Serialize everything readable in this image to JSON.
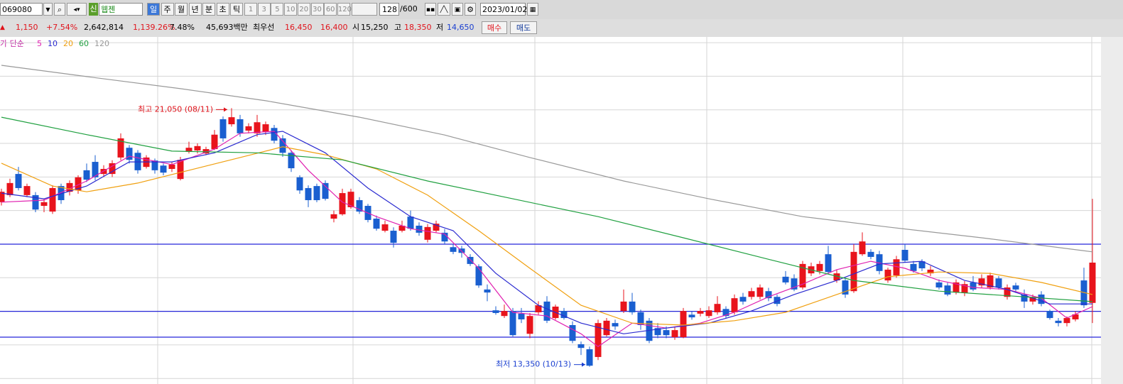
{
  "toolbar": {
    "code": "069080",
    "badge": "신",
    "name": "웹젠",
    "periods": [
      "일",
      "주",
      "월",
      "년",
      "분",
      "초",
      "틱"
    ],
    "intervals": [
      "1",
      "3",
      "5",
      "10",
      "20",
      "30",
      "60",
      "120"
    ],
    "count": "128",
    "total": "/600",
    "date": "2023/01/02"
  },
  "quote": {
    "arrow": "▲",
    "change": "1,150",
    "change_pct": "+7.54%",
    "volume": "2,642,814",
    "volume_ratio": "1,139.26%",
    "turnover": "7.48%",
    "amount": "45,693백만",
    "best_label": "최우선",
    "ask": "16,450",
    "bid": "16,400",
    "open_label": "시",
    "open": "15,250",
    "high_label": "고",
    "high": "18,350",
    "low_label": "저",
    "low": "14,650",
    "buy": "매수",
    "sell": "매도"
  },
  "chart_data": {
    "type": "candlestick",
    "legend_prefix": "가 단순",
    "ylim": [
      12920,
      23150
    ],
    "gridlines": [
      13000,
      14000,
      15000,
      16000,
      17000,
      18000,
      19000,
      20000,
      21000,
      22000,
      23000
    ],
    "hlines": [
      17000,
      15000,
      14230
    ],
    "hline_color": "#2626d9",
    "up_color": "#e8141c",
    "down_color": "#1a5fd0",
    "candles": [
      [
        18250,
        18650,
        18150,
        18560
      ],
      [
        18460,
        18950,
        18400,
        18820
      ],
      [
        19090,
        19300,
        18600,
        18670
      ],
      [
        18460,
        18800,
        18400,
        18730
      ],
      [
        18460,
        18550,
        17950,
        18030
      ],
      [
        18140,
        18350,
        17950,
        18250
      ],
      [
        17970,
        18750,
        17900,
        18670
      ],
      [
        18730,
        18800,
        18200,
        18310
      ],
      [
        18560,
        18900,
        18450,
        18820
      ],
      [
        18600,
        19050,
        18500,
        18990
      ],
      [
        19200,
        19400,
        18850,
        18920
      ],
      [
        19450,
        19650,
        18900,
        18990
      ],
      [
        19090,
        19350,
        19000,
        19240
      ],
      [
        19090,
        19500,
        19000,
        19410
      ],
      [
        19580,
        20300,
        19500,
        20150
      ],
      [
        19870,
        19950,
        19400,
        19510
      ],
      [
        19720,
        19800,
        19100,
        19200
      ],
      [
        19300,
        19650,
        19250,
        19580
      ],
      [
        19490,
        19550,
        19100,
        19200
      ],
      [
        19340,
        19400,
        19050,
        19130
      ],
      [
        19240,
        19450,
        19150,
        19370
      ],
      [
        18940,
        19600,
        18900,
        19510
      ],
      [
        19750,
        20050,
        19700,
        19870
      ],
      [
        19790,
        20000,
        19700,
        19920
      ],
      [
        19700,
        19900,
        19650,
        19830
      ],
      [
        19830,
        20400,
        19800,
        20260
      ],
      [
        20720,
        20800,
        20050,
        20150
      ],
      [
        20570,
        21050,
        20500,
        20780
      ],
      [
        20720,
        20850,
        20200,
        20300
      ],
      [
        20380,
        20600,
        20300,
        20510
      ],
      [
        20300,
        20850,
        20200,
        20630
      ],
      [
        20340,
        20650,
        20250,
        20570
      ],
      [
        20460,
        20550,
        20000,
        20080
      ],
      [
        20150,
        20250,
        19600,
        19720
      ],
      [
        19720,
        19800,
        19150,
        19260
      ],
      [
        18990,
        19050,
        18500,
        18600
      ],
      [
        18670,
        18750,
        18100,
        18310
      ],
      [
        18730,
        18800,
        18250,
        18310
      ],
      [
        18820,
        18900,
        18300,
        18350
      ],
      [
        17760,
        18000,
        17650,
        17890
      ],
      [
        17890,
        18650,
        17850,
        18520
      ],
      [
        18100,
        18650,
        18050,
        18560
      ],
      [
        18310,
        18400,
        17900,
        17970
      ],
      [
        18140,
        18200,
        17650,
        17720
      ],
      [
        17760,
        17850,
        17400,
        17460
      ],
      [
        17400,
        17700,
        17350,
        17590
      ],
      [
        17400,
        17500,
        16900,
        17040
      ],
      [
        17400,
        17700,
        17350,
        17550
      ],
      [
        17820,
        18000,
        17400,
        17460
      ],
      [
        17550,
        17650,
        17250,
        17340
      ],
      [
        17130,
        17600,
        17050,
        17510
      ],
      [
        17400,
        17700,
        17350,
        17610
      ],
      [
        17340,
        17450,
        17000,
        17080
      ],
      [
        16910,
        17000,
        16700,
        16770
      ],
      [
        16870,
        16950,
        16600,
        16740
      ],
      [
        16620,
        16700,
        16350,
        16410
      ],
      [
        16340,
        16400,
        15700,
        15770
      ],
      [
        15650,
        15800,
        15300,
        15560
      ],
      [
        15030,
        15150,
        14900,
        14950
      ],
      [
        14860,
        15200,
        14800,
        15010
      ],
      [
        15010,
        15100,
        14250,
        14290
      ],
      [
        14930,
        15100,
        14650,
        14760
      ],
      [
        14330,
        14950,
        14200,
        14860
      ],
      [
        14970,
        15300,
        14900,
        15180
      ],
      [
        15290,
        15450,
        14650,
        14720
      ],
      [
        14800,
        15200,
        14750,
        15140
      ],
      [
        15010,
        15100,
        14750,
        14800
      ],
      [
        14590,
        14700,
        14050,
        14120
      ],
      [
        14020,
        14100,
        13700,
        13910
      ],
      [
        13870,
        13950,
        13350,
        13380
      ],
      [
        13640,
        14750,
        13550,
        14650
      ],
      [
        14290,
        14800,
        14250,
        14720
      ],
      [
        14650,
        14750,
        14450,
        14550
      ],
      [
        15010,
        15650,
        14950,
        15290
      ],
      [
        15290,
        15550,
        14900,
        14970
      ],
      [
        14970,
        15050,
        14450,
        14590
      ],
      [
        14720,
        14800,
        14050,
        14120
      ],
      [
        14500,
        14650,
        14200,
        14290
      ],
      [
        14440,
        14550,
        14200,
        14290
      ],
      [
        14230,
        14550,
        14150,
        14440
      ],
      [
        14230,
        15100,
        14200,
        15010
      ],
      [
        14900,
        15000,
        14750,
        14820
      ],
      [
        14930,
        15100,
        14850,
        15010
      ],
      [
        14860,
        15150,
        14800,
        15030
      ],
      [
        14970,
        15450,
        14900,
        15220
      ],
      [
        15070,
        15150,
        14800,
        14860
      ],
      [
        14970,
        15500,
        14900,
        15390
      ],
      [
        15430,
        15550,
        15200,
        15290
      ],
      [
        15430,
        15700,
        15350,
        15600
      ],
      [
        15430,
        15800,
        15350,
        15710
      ],
      [
        15600,
        15700,
        15300,
        15390
      ],
      [
        15430,
        15500,
        15150,
        15220
      ],
      [
        16030,
        16200,
        15800,
        15860
      ],
      [
        15980,
        16100,
        15600,
        15650
      ],
      [
        15710,
        16500,
        15650,
        16410
      ],
      [
        16130,
        16450,
        16050,
        16340
      ],
      [
        16200,
        16500,
        16100,
        16410
      ],
      [
        16700,
        16950,
        16100,
        16170
      ],
      [
        15920,
        16250,
        15850,
        16130
      ],
      [
        15920,
        16000,
        15400,
        15500
      ],
      [
        15600,
        17000,
        15550,
        16770
      ],
      [
        16700,
        17350,
        16650,
        17080
      ],
      [
        16770,
        16850,
        16550,
        16620
      ],
      [
        16700,
        16800,
        16100,
        16200
      ],
      [
        15920,
        16300,
        15850,
        16240
      ],
      [
        16070,
        16650,
        16000,
        16550
      ],
      [
        16830,
        17000,
        16450,
        16510
      ],
      [
        16410,
        16500,
        16150,
        16200
      ],
      [
        16490,
        16550,
        16200,
        16280
      ],
      [
        16130,
        16350,
        16050,
        16240
      ],
      [
        15860,
        15950,
        15650,
        15710
      ],
      [
        15770,
        15850,
        15450,
        15500
      ],
      [
        15560,
        15950,
        15500,
        15860
      ],
      [
        15540,
        15900,
        15450,
        15810
      ],
      [
        15860,
        16050,
        15600,
        15650
      ],
      [
        15770,
        16100,
        15700,
        15980
      ],
      [
        15710,
        16150,
        15650,
        16070
      ],
      [
        15980,
        16050,
        15650,
        15710
      ],
      [
        15430,
        15800,
        15350,
        15710
      ],
      [
        15770,
        15850,
        15550,
        15650
      ],
      [
        15500,
        15650,
        15100,
        15290
      ],
      [
        15290,
        15500,
        15200,
        15430
      ],
      [
        15500,
        15600,
        15150,
        15220
      ],
      [
        15010,
        15050,
        14750,
        14800
      ],
      [
        14720,
        14800,
        14550,
        14650
      ],
      [
        14650,
        14850,
        14550,
        14800
      ],
      [
        14760,
        15000,
        14700,
        14910
      ],
      [
        15920,
        16300,
        15100,
        15180
      ],
      [
        15250,
        18350,
        14650,
        16450
      ]
    ],
    "series": [
      {
        "name": "5",
        "color": "#e020b0",
        "x": [
          0,
          5,
          10,
          15,
          20,
          25,
          28,
          32,
          36,
          40,
          44,
          48,
          52,
          56,
          60,
          64,
          68,
          70,
          74,
          78,
          82,
          86,
          90,
          94,
          98,
          102,
          106,
          110,
          114,
          118,
          122,
          125,
          128
        ],
        "values": [
          18250,
          18310,
          18880,
          19620,
          19370,
          19830,
          20300,
          20360,
          19200,
          18250,
          17820,
          17460,
          17300,
          16280,
          14970,
          14860,
          14330,
          13950,
          14650,
          14500,
          14650,
          14970,
          15430,
          15810,
          16240,
          16490,
          16280,
          15920,
          15710,
          15650,
          15390,
          14800,
          15140
        ]
      },
      {
        "name": "10",
        "color": "#2a2ad0",
        "x": [
          0,
          5,
          10,
          15,
          20,
          25,
          30,
          33,
          38,
          43,
          48,
          53,
          58,
          63,
          68,
          73,
          78,
          83,
          88,
          93,
          98,
          103,
          108,
          113,
          118,
          123,
          128
        ],
        "values": [
          18520,
          18350,
          18730,
          19450,
          19450,
          19720,
          20260,
          20360,
          19720,
          18670,
          17820,
          17400,
          16130,
          15180,
          14650,
          14330,
          14500,
          14650,
          15010,
          15500,
          15920,
          16410,
          16490,
          15920,
          15650,
          15220,
          15220
        ]
      },
      {
        "name": "20",
        "color": "#f0a010",
        "x": [
          0,
          6,
          10,
          16,
          22,
          28,
          33,
          38,
          44,
          50,
          56,
          62,
          68,
          74,
          80,
          86,
          92,
          98,
          104,
          110,
          116,
          122,
          128
        ],
        "values": [
          19410,
          18730,
          18560,
          18820,
          19200,
          19580,
          19900,
          19660,
          19240,
          18460,
          17400,
          16280,
          15180,
          14650,
          14590,
          14720,
          14970,
          15500,
          16030,
          16170,
          16130,
          15860,
          15500
        ]
      },
      {
        "name": "60",
        "color": "#20a040",
        "x": [
          0,
          10,
          20,
          30,
          40,
          50,
          60,
          70,
          80,
          90,
          100,
          110,
          120,
          128
        ],
        "values": [
          20780,
          20260,
          19770,
          19720,
          19510,
          18880,
          18350,
          17820,
          17190,
          16550,
          15920,
          15600,
          15430,
          15290
        ]
      },
      {
        "name": "120",
        "color": "#999999",
        "x": [
          0,
          10,
          21,
          31,
          42,
          52,
          62,
          73,
          83,
          94,
          104,
          115,
          128
        ],
        "values": [
          22325,
          21990,
          21630,
          21270,
          20780,
          20250,
          19580,
          18880,
          18350,
          17820,
          17510,
          17190,
          16770
        ]
      }
    ],
    "annotations": [
      {
        "text": "최고 21,050 (08/11)",
        "color": "#e0141c"
      },
      {
        "text": "최저 13,350 (10/13)",
        "color": "#1a3fd0"
      }
    ]
  }
}
